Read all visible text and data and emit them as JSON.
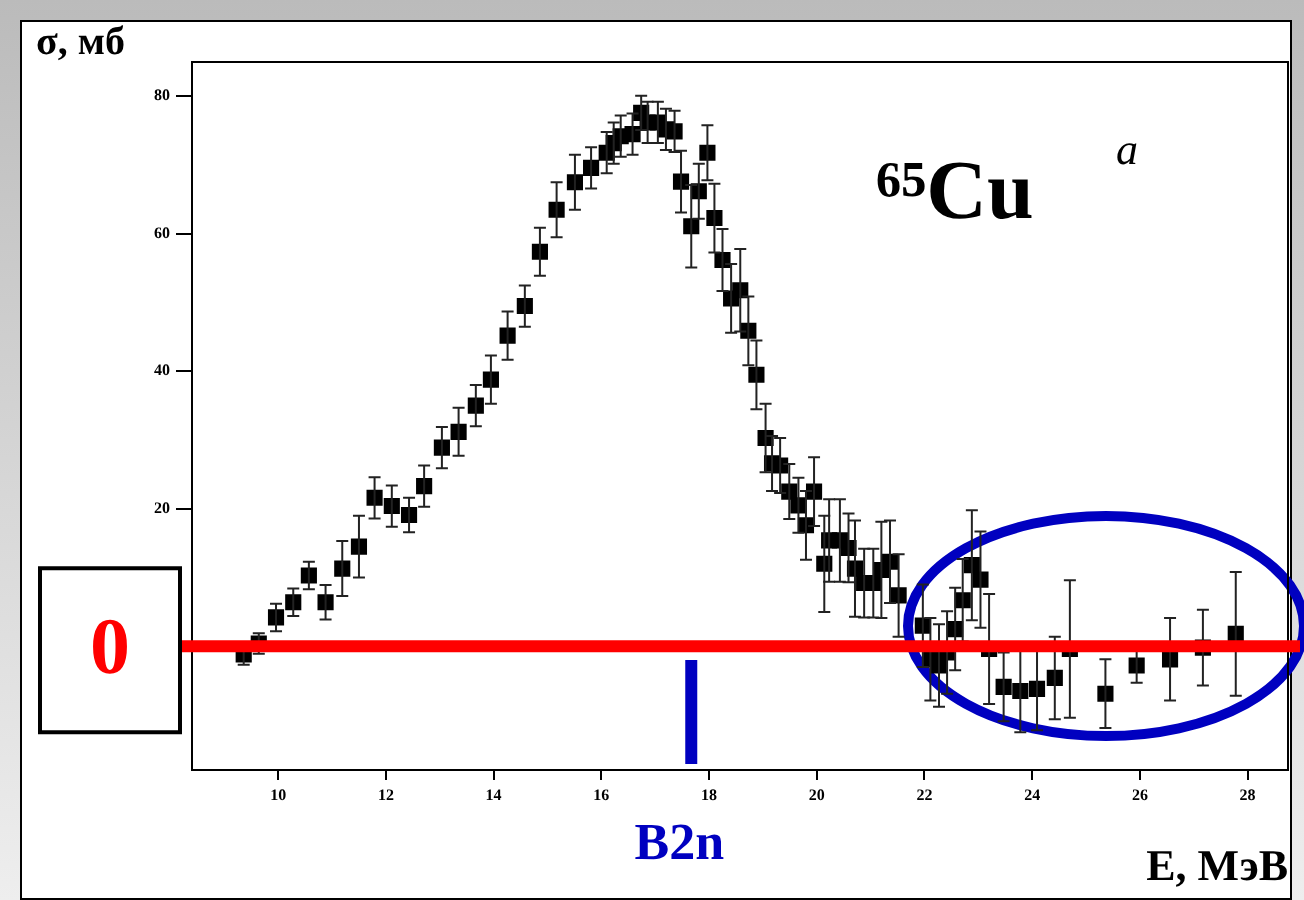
{
  "chart_data": {
    "type": "scatter",
    "xlabel": "E, МэВ",
    "ylabel": "σ, мб",
    "annotations": [
      "⁶⁵Cu",
      "a"
    ],
    "x": [
      9.36,
      9.64,
      9.96,
      10.28,
      10.57,
      10.88,
      11.19,
      11.5,
      11.79,
      12.11,
      12.43,
      12.71,
      13.04,
      13.35,
      13.67,
      13.95,
      14.26,
      14.58,
      14.86,
      15.17,
      15.51,
      15.81,
      16.1,
      16.23,
      16.36,
      16.58,
      16.74,
      16.86,
      17.05,
      17.2,
      17.36,
      17.48,
      17.67,
      17.81,
      17.97,
      18.1,
      18.25,
      18.41,
      18.58,
      18.73,
      18.88,
      19.05,
      19.17,
      19.32,
      19.49,
      19.66,
      19.8,
      19.95,
      20.14,
      20.23,
      20.43,
      20.59,
      20.71,
      20.88,
      21.05,
      21.2,
      21.36,
      21.52,
      21.97,
      22.11,
      22.27,
      22.42,
      22.57,
      22.71,
      22.88,
      23.04,
      23.2,
      23.47,
      23.78,
      24.09,
      24.42,
      24.7,
      25.36,
      25.94,
      26.56,
      27.17,
      27.78
    ],
    "values": [
      -1.2,
      0.4,
      4.2,
      6.4,
      10.3,
      6.4,
      11.3,
      14.5,
      21.6,
      20.4,
      19.1,
      23.3,
      28.9,
      31.2,
      35,
      38.8,
      45.2,
      49.5,
      57.4,
      63.5,
      67.5,
      69.6,
      71.8,
      73.2,
      74.2,
      74.5,
      77.6,
      76.2,
      76.2,
      75.2,
      74.9,
      67.6,
      61.1,
      66.2,
      71.8,
      62.3,
      56.2,
      50.6,
      51.8,
      45.9,
      39.5,
      30.3,
      26.6,
      26.3,
      22.5,
      20.5,
      17.6,
      22.5,
      12,
      15.4,
      15.4,
      14.3,
      11.3,
      9.2,
      9.2,
      11.1,
      12.3,
      7.4,
      3,
      -1.9,
      -2.8,
      -0.9,
      2.5,
      6.7,
      11.8,
      9.7,
      -0.4,
      -5.9,
      -6.5,
      -6.2,
      -4.6,
      -0.4,
      -6.9,
      -2.8,
      -1.9,
      -0.2,
      1.8
    ],
    "errors": [
      1.5,
      1.5,
      2,
      2,
      2,
      2.5,
      4,
      4.5,
      3,
      3,
      2.5,
      3,
      3,
      3.5,
      3,
      3.5,
      3.5,
      3,
      3.5,
      4,
      4,
      3,
      3,
      3,
      3,
      3,
      2.5,
      3,
      3,
      3,
      3,
      4.5,
      6,
      4,
      4,
      5,
      4.5,
      5,
      6,
      5,
      5,
      5,
      4,
      4,
      4,
      4,
      5,
      5,
      7,
      6,
      6,
      5,
      7,
      5,
      5,
      7,
      6,
      6,
      6,
      6,
      6,
      6,
      6,
      6,
      8,
      7,
      8,
      5,
      6,
      6,
      6,
      10,
      5,
      2.5,
      6,
      5.5,
      9
    ],
    "color": "#000000",
    "marker": "square",
    "xlim": [
      8.4,
      28.75
    ],
    "ylim": [
      -18,
      85
    ],
    "xticks": [
      10,
      12,
      14,
      16,
      18,
      20,
      22,
      24,
      26,
      28
    ],
    "yticks": [
      20,
      40,
      60,
      80
    ],
    "ref_lines": [
      {
        "axis": "y",
        "value": 0,
        "label": "0",
        "color": "#ff0000"
      },
      {
        "axis": "x",
        "value": 17.67,
        "label": "B2n",
        "color": "#0000c0"
      }
    ],
    "grid": false,
    "legend": false
  }
}
